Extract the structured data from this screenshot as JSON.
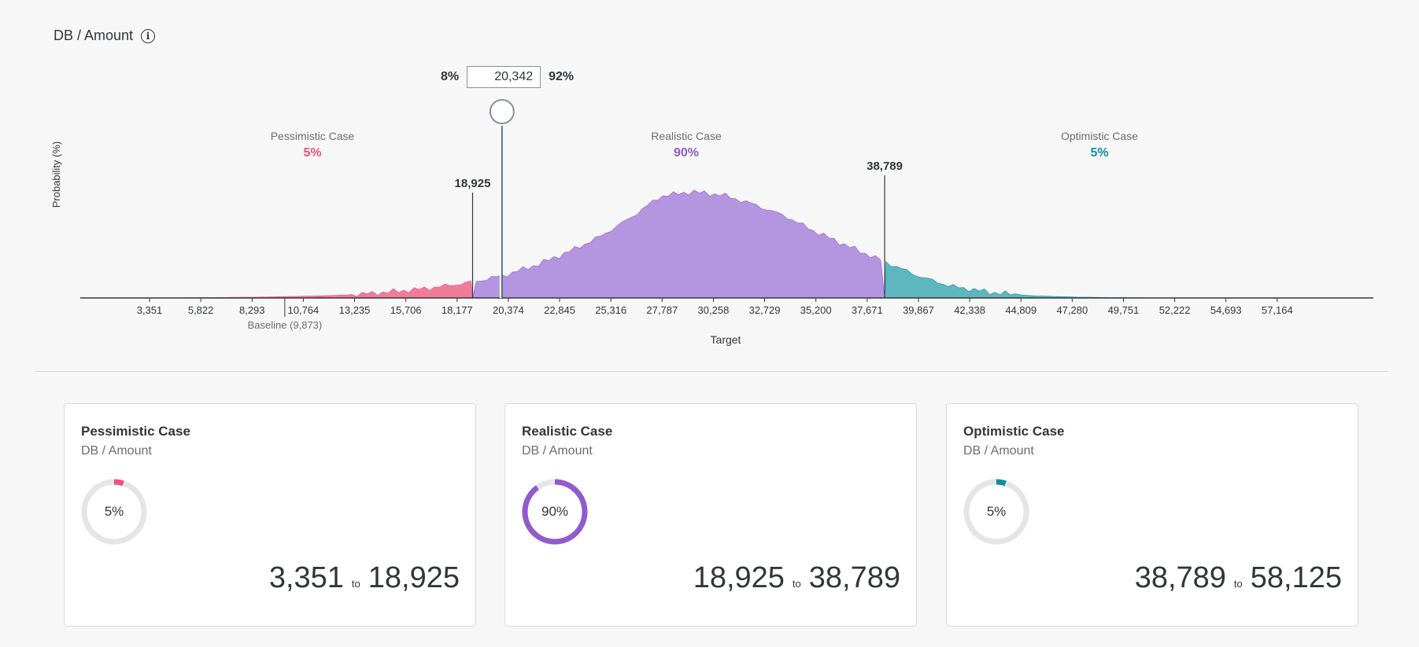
{
  "header": {
    "title": "DB / Amount",
    "info_icon": "info-icon"
  },
  "threshold": {
    "left_pct": "8%",
    "value": "20,342",
    "right_pct": "92%"
  },
  "chart_data": {
    "type": "area",
    "title": "",
    "xlabel": "Target",
    "ylabel": "Probability (%)",
    "x_ticks": [
      "3,351",
      "5,822",
      "8,293",
      "10,764",
      "13,235",
      "15,706",
      "18,177",
      "20,374",
      "22,845",
      "25,316",
      "27,787",
      "30,258",
      "32,729",
      "35,200",
      "37,671",
      "39,867",
      "42,338",
      "44,809",
      "47,280",
      "49,751",
      "52,222",
      "54,693",
      "57,164"
    ],
    "x_range": [
      3351,
      58125
    ],
    "baseline": {
      "label": "Baseline (9,873)",
      "value": 9873
    },
    "threshold_marker": 20342,
    "boundaries": [
      {
        "value": 18925,
        "label": "18,925"
      },
      {
        "value": 38789,
        "label": "38,789"
      }
    ],
    "segments": [
      {
        "name": "Pessimistic Case",
        "pct": "5%",
        "color": "#e9537e",
        "fill": "#f07c9a"
      },
      {
        "name": "Realistic Case",
        "pct": "90%",
        "color": "#925ace",
        "fill": "#b496e0"
      },
      {
        "name": "Optimistic Case",
        "pct": "5%",
        "color": "#0f8e9e",
        "fill": "#5eb7bf"
      }
    ],
    "distribution": {
      "x": [
        3351,
        6000,
        9000,
        12000,
        14000,
        16000,
        17500,
        18900,
        20400,
        22000,
        23500,
        25000,
        26500,
        28000,
        29500,
        31000,
        32500,
        34000,
        35500,
        37000,
        38800,
        40500,
        42000,
        44000,
        46000,
        48000,
        50000,
        52000,
        55000,
        58125
      ],
      "y": [
        0,
        0.3,
        0.9,
        2.2,
        4.2,
        7.5,
        11,
        15,
        21,
        31,
        43,
        57,
        75,
        96,
        100,
        97,
        88,
        77,
        62,
        49,
        34,
        20,
        11,
        5,
        2,
        0.8,
        0.3,
        0.1,
        0.05,
        0
      ]
    }
  },
  "cards": [
    {
      "title": "Pessimistic Case",
      "subtitle": "DB / Amount",
      "pct": "5%",
      "fraction": 0.05,
      "color": "#e9537e",
      "from": "3,351",
      "to_word": "to",
      "to": "18,925"
    },
    {
      "title": "Realistic Case",
      "subtitle": "DB / Amount",
      "pct": "90%",
      "fraction": 0.9,
      "color": "#925ace",
      "from": "18,925",
      "to_word": "to",
      "to": "38,789"
    },
    {
      "title": "Optimistic Case",
      "subtitle": "DB / Amount",
      "pct": "5%",
      "fraction": 0.05,
      "color": "#0f8e9e",
      "from": "38,789",
      "to_word": "to",
      "to": "58,125"
    }
  ]
}
